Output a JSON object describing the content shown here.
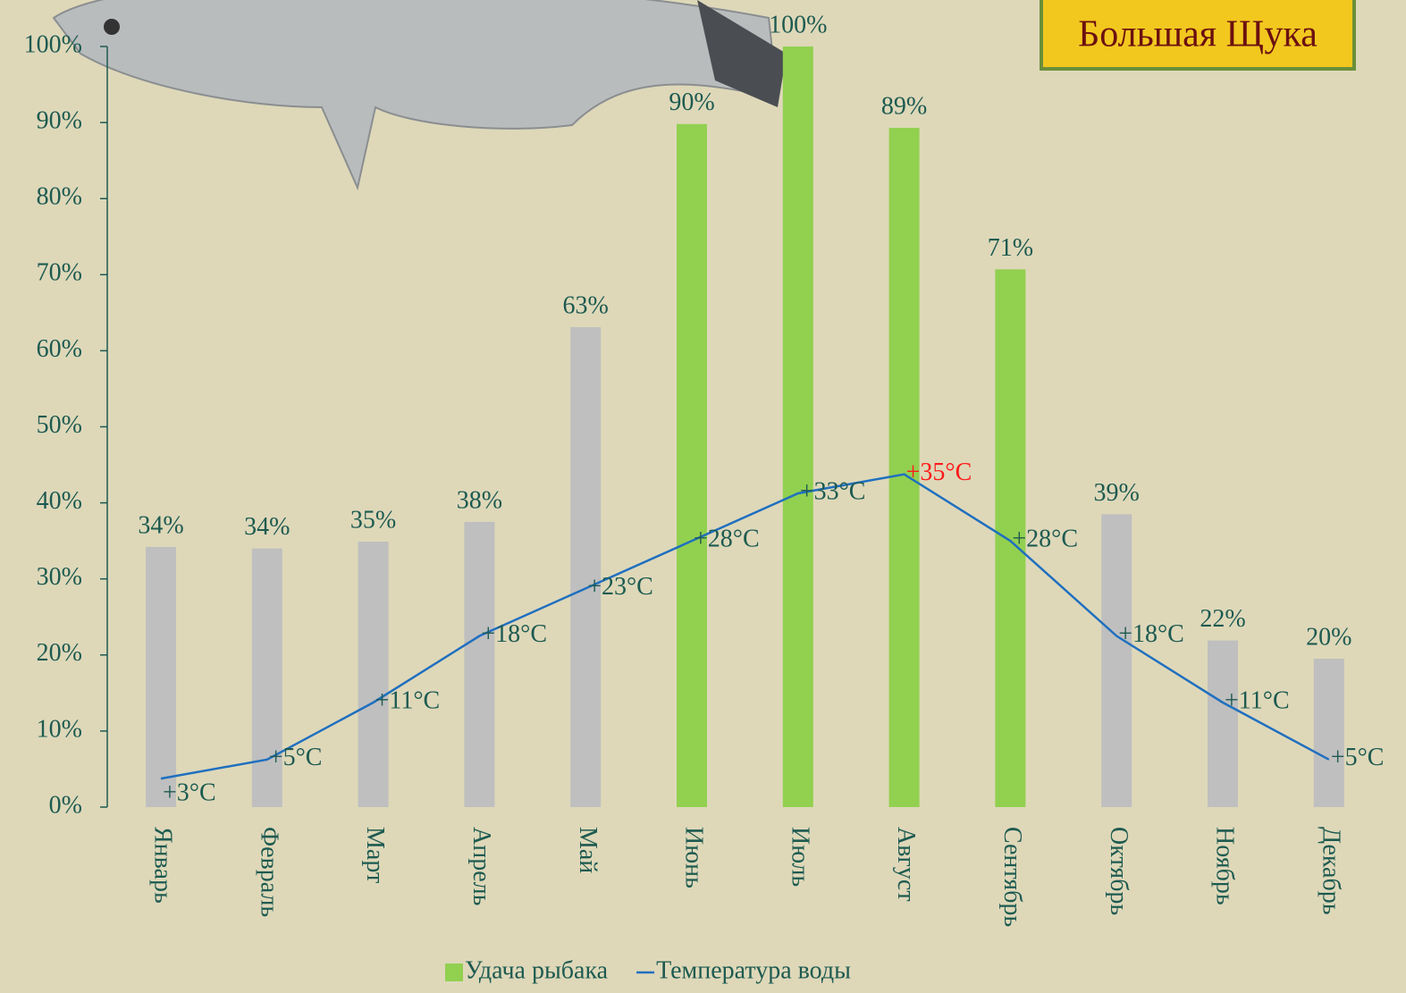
{
  "logo": {
    "text": "Большая Щука"
  },
  "chart_data": {
    "type": "bar",
    "categories": [
      "Январь",
      "Февраль",
      "Март",
      "Апрель",
      "Май",
      "Июнь",
      "Июль",
      "Август",
      "Сентябрь",
      "Октябрь",
      "Ноябрь",
      "Декабрь"
    ],
    "series": [
      {
        "name": "Удача рыбака",
        "type": "bar",
        "color": "#92d050",
        "colors": [
          "#bfbfbf",
          "#bfbfbf",
          "#bfbfbf",
          "#bfbfbf",
          "#bfbfbf",
          "#92d050",
          "#92d050",
          "#92d050",
          "#92d050",
          "#bfbfbf",
          "#bfbfbf",
          "#bfbfbf"
        ],
        "values": [
          34.2,
          34,
          34.9,
          37.5,
          63.1,
          89.8,
          100,
          89.3,
          70.7,
          38.5,
          21.9,
          19.5
        ],
        "value_labels": [
          "34%",
          "34%",
          "35%",
          "38%",
          "63%",
          "90%",
          "100%",
          "89%",
          "71%",
          "39%",
          "22%",
          "20%"
        ]
      },
      {
        "name": "Температура воды",
        "type": "line",
        "axis": "y2",
        "color": "#1f6fbf",
        "values": [
          3,
          5,
          11,
          18,
          23,
          28,
          33,
          35,
          28,
          18,
          11,
          5
        ],
        "value_labels": [
          "+3°C",
          "+5°C",
          "+11°C",
          "+18°C",
          "+23°C",
          "+28°C",
          "+33°C",
          "+35°C",
          "+28°C",
          "+18°C",
          "+11°C",
          "+5°C"
        ],
        "value_label_colors": [
          "#1d5a50",
          "#1d5a50",
          "#1d5a50",
          "#1d5a50",
          "#1d5a50",
          "#1d5a50",
          "#1d5a50",
          "#ff1a1a",
          "#1d5a50",
          "#1d5a50",
          "#1d5a50",
          "#1d5a50"
        ]
      }
    ],
    "ylim": [
      0,
      100
    ],
    "yticks": [
      {
        "value": 0,
        "label": "0%"
      },
      {
        "value": 10,
        "label": "10%"
      },
      {
        "value": 20,
        "label": "20%"
      },
      {
        "value": 30,
        "label": "30%"
      },
      {
        "value": 40,
        "label": "40%"
      },
      {
        "value": 50,
        "label": "50%"
      },
      {
        "value": 60,
        "label": "60%"
      },
      {
        "value": 70,
        "label": "70%"
      },
      {
        "value": 80,
        "label": "80%"
      },
      {
        "value": 90,
        "label": "90%"
      },
      {
        "value": 100,
        "label": "100%"
      }
    ],
    "y2lim": [
      0,
      80
    ],
    "legend": "bottom"
  }
}
